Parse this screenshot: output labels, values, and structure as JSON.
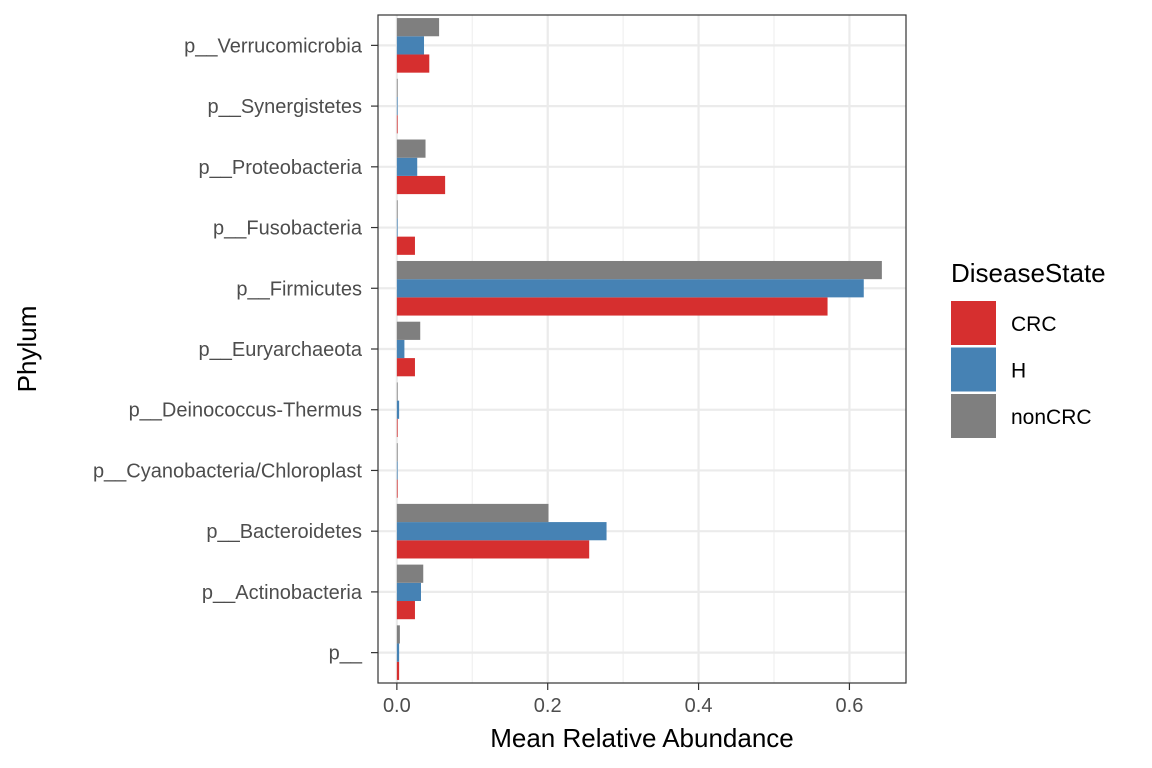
{
  "chart_data": {
    "type": "bar",
    "orientation": "horizontal",
    "categories": [
      "p__",
      "p__Actinobacteria",
      "p__Bacteroidetes",
      "p__Cyanobacteria/Chloroplast",
      "p__Deinococcus-Thermus",
      "p__Euryarchaeota",
      "p__Firmicutes",
      "p__Fusobacteria",
      "p__Proteobacteria",
      "p__Synergistetes",
      "p__Verrucomicrobia"
    ],
    "series": [
      {
        "name": "CRC",
        "color": "#d62f2f",
        "values": [
          0.003,
          0.024,
          0.255,
          0.001,
          0.001,
          0.024,
          0.571,
          0.024,
          0.064,
          0.001,
          0.043
        ]
      },
      {
        "name": "H",
        "color": "#4682b4",
        "values": [
          0.003,
          0.032,
          0.278,
          0.001,
          0.003,
          0.01,
          0.619,
          0.001,
          0.027,
          0.001,
          0.036
        ]
      },
      {
        "name": "nonCRC",
        "color": "#7f7f7f",
        "values": [
          0.004,
          0.035,
          0.201,
          0.001,
          0.001,
          0.031,
          0.643,
          0.001,
          0.038,
          0.001,
          0.056
        ]
      }
    ],
    "xlabel": "Mean Relative Abundance",
    "ylabel": "Phylum",
    "xlim": [
      -0.025,
      0.675
    ],
    "xticks": [
      0.0,
      0.2,
      0.4,
      0.6
    ],
    "xtick_labels": [
      "0.0",
      "0.2",
      "0.4",
      "0.6"
    ],
    "grid": true,
    "legend": {
      "title": "DiseaseState",
      "placement": "right"
    }
  }
}
